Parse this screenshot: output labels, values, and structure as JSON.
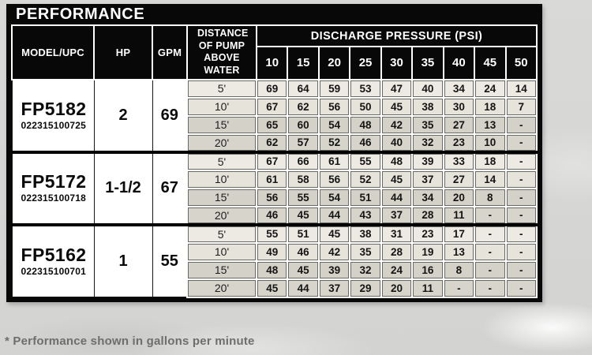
{
  "page": {
    "title": "PERFORMANCE",
    "footnote": "* Performance shown in gallons per minute"
  },
  "table": {
    "columns": {
      "model": "MODEL/UPC",
      "hp": "HP",
      "gpm": "GPM",
      "distance": "DISTANCE OF PUMP ABOVE WATER",
      "discharge": "DISCHARGE PRESSURE (PSI)"
    },
    "psi_headers": [
      "10",
      "15",
      "20",
      "25",
      "30",
      "35",
      "40",
      "45",
      "50"
    ],
    "models": [
      {
        "model": "FP5182",
        "upc": "022315100725",
        "hp": "2",
        "gpm": "69",
        "rows": [
          {
            "distance": "5'",
            "values": [
              "69",
              "64",
              "59",
              "53",
              "47",
              "40",
              "34",
              "24",
              "14"
            ]
          },
          {
            "distance": "10'",
            "values": [
              "67",
              "62",
              "56",
              "50",
              "45",
              "38",
              "30",
              "18",
              "7"
            ]
          },
          {
            "distance": "15'",
            "values": [
              "65",
              "60",
              "54",
              "48",
              "42",
              "35",
              "27",
              "13",
              "-"
            ]
          },
          {
            "distance": "20'",
            "values": [
              "62",
              "57",
              "52",
              "46",
              "40",
              "32",
              "23",
              "10",
              "-"
            ]
          }
        ]
      },
      {
        "model": "FP5172",
        "upc": "022315100718",
        "hp": "1-1/2",
        "gpm": "67",
        "rows": [
          {
            "distance": "5'",
            "values": [
              "67",
              "66",
              "61",
              "55",
              "48",
              "39",
              "33",
              "18",
              "-"
            ]
          },
          {
            "distance": "10'",
            "values": [
              "61",
              "58",
              "56",
              "52",
              "45",
              "37",
              "27",
              "14",
              "-"
            ]
          },
          {
            "distance": "15'",
            "values": [
              "56",
              "55",
              "54",
              "51",
              "44",
              "34",
              "20",
              "8",
              "-"
            ]
          },
          {
            "distance": "20'",
            "values": [
              "46",
              "45",
              "44",
              "43",
              "37",
              "28",
              "11",
              "-",
              "-"
            ]
          }
        ]
      },
      {
        "model": "FP5162",
        "upc": "022315100701",
        "hp": "1",
        "gpm": "55",
        "rows": [
          {
            "distance": "5'",
            "values": [
              "55",
              "51",
              "45",
              "38",
              "31",
              "23",
              "17",
              "-",
              "-"
            ]
          },
          {
            "distance": "10'",
            "values": [
              "49",
              "46",
              "42",
              "35",
              "28",
              "19",
              "13",
              "-",
              "-"
            ]
          },
          {
            "distance": "15'",
            "values": [
              "48",
              "45",
              "39",
              "32",
              "24",
              "16",
              "8",
              "-",
              "-"
            ]
          },
          {
            "distance": "20'",
            "values": [
              "45",
              "44",
              "37",
              "29",
              "20",
              "11",
              "-",
              "-",
              "-"
            ]
          }
        ]
      }
    ]
  },
  "colors": {
    "header_bg": "#080808",
    "header_text": "#ffffff",
    "left_cell_bg": "#ffffff",
    "row_light": "#eae7e0",
    "row_dark": "#d5d2c9",
    "block_separator": "#000000",
    "page_bg": "#d6d6d4",
    "footnote_text": "#6e6e6e"
  }
}
